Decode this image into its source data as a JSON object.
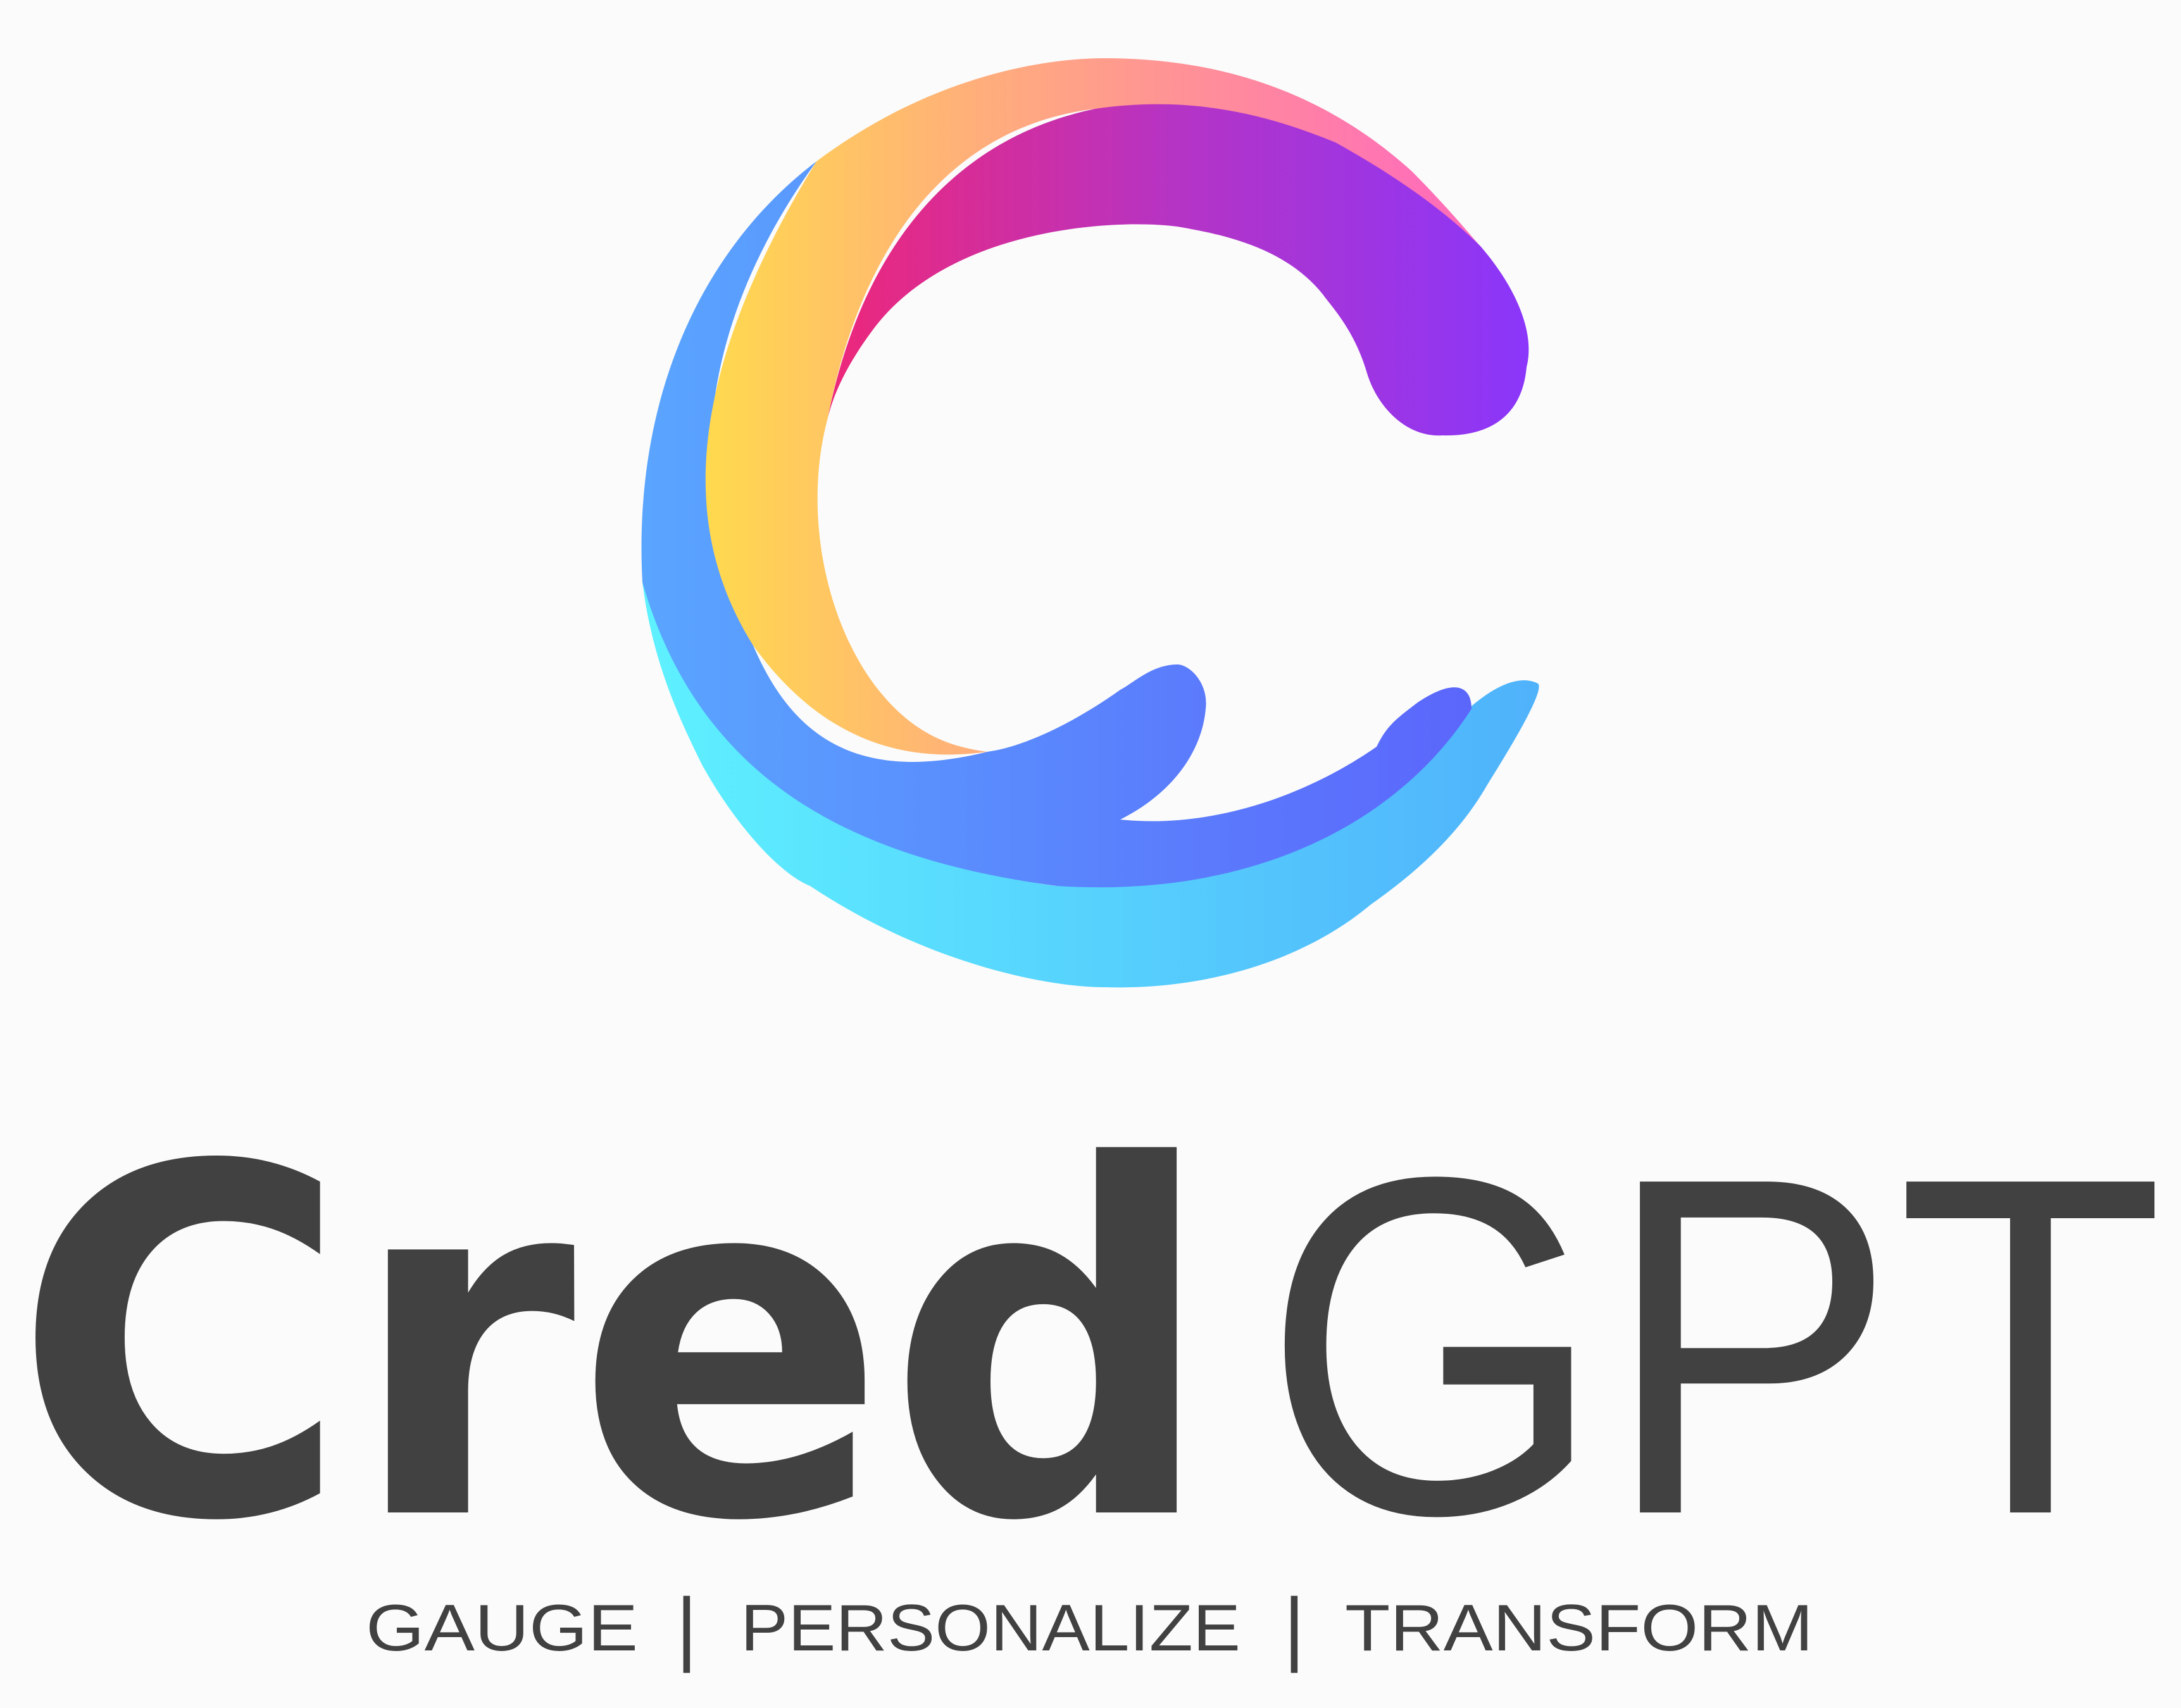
{
  "brand": {
    "name_bold": "Cred",
    "name_light": "GPT",
    "tagline_words": [
      "GAUGE",
      "PERSONALIZE",
      "TRANSFORM"
    ],
    "tagline_separator": "|"
  },
  "colors": {
    "background": "#fbfbfb",
    "text": "#414141",
    "gradient_warm": [
      "#ffd84a",
      "#ffb07a",
      "#ff7fb0"
    ],
    "gradient_magenta": [
      "#e8247e",
      "#b734c4",
      "#8a35fb"
    ],
    "gradient_blue": [
      "#5aa6ff",
      "#5b6cfb"
    ],
    "gradient_cyan": [
      "#5ef2ff",
      "#4fb1fb"
    ]
  },
  "icons": {
    "logo_mark": "stylized-c-swirl-icon"
  }
}
